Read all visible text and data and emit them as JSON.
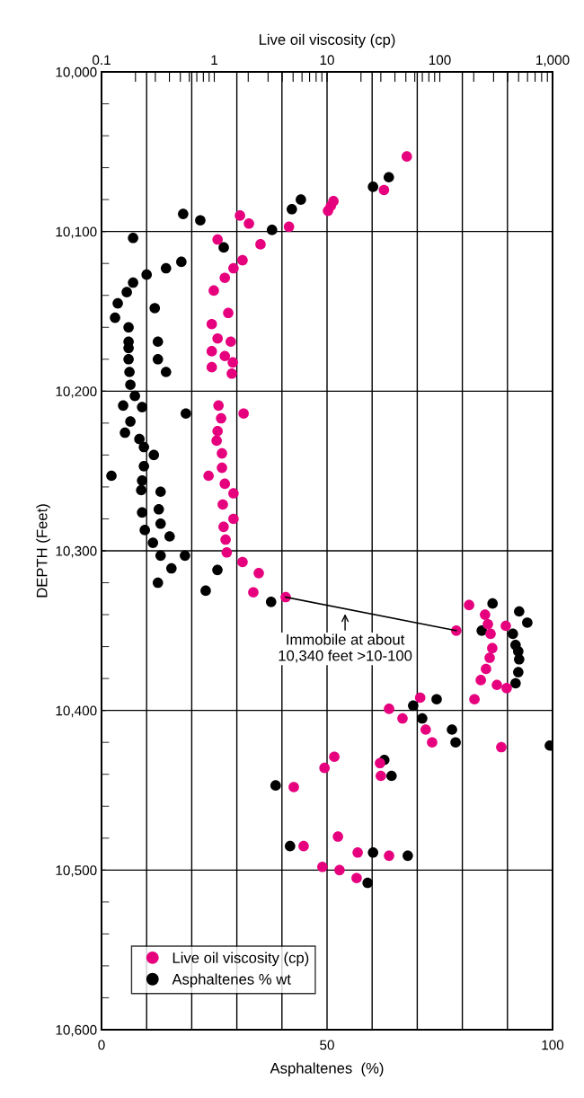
{
  "chart_data": {
    "type": "scatter",
    "xlabel": "Asphaltenes  (%)",
    "x2label": "Live oil viscosity (cp)",
    "ylabel": "DEPTH (Feet)",
    "xlim": [
      0,
      100
    ],
    "xticks": [
      0,
      {
        "value": 10,
        "label": null
      },
      {
        "value": 20,
        "label": null
      },
      {
        "value": 30,
        "label": null
      },
      {
        "value": 40,
        "label": null
      },
      50,
      {
        "value": 60,
        "label": null
      },
      {
        "value": 70,
        "label": null
      },
      {
        "value": 80,
        "label": null
      },
      {
        "value": 90,
        "label": null
      },
      100
    ],
    "x2lim": [
      0.1,
      1000
    ],
    "x2ticks": [
      0.1,
      {
        "value": 0.2,
        "label": null
      },
      {
        "value": 0.3,
        "label": null
      },
      {
        "value": 0.4,
        "label": null
      },
      {
        "value": 0.5,
        "label": null
      },
      {
        "value": 0.6,
        "label": null
      },
      {
        "value": 0.7,
        "label": null
      },
      {
        "value": 0.8,
        "label": null
      },
      {
        "value": 0.9,
        "label": null
      },
      1,
      {
        "value": 2,
        "label": null
      },
      {
        "value": 3,
        "label": null
      },
      {
        "value": 4,
        "label": null
      },
      {
        "value": 5,
        "label": null
      },
      {
        "value": 6,
        "label": null
      },
      {
        "value": 7,
        "label": null
      },
      {
        "value": 8,
        "label": null
      },
      {
        "value": 9,
        "label": null
      },
      10,
      {
        "value": 20,
        "label": null
      },
      {
        "value": 30,
        "label": null
      },
      {
        "value": 40,
        "label": null
      },
      {
        "value": 50,
        "label": null
      },
      {
        "value": 60,
        "label": null
      },
      {
        "value": 70,
        "label": null
      },
      {
        "value": 80,
        "label": null
      },
      {
        "value": 90,
        "label": null
      },
      100,
      {
        "value": 200,
        "label": null
      },
      {
        "value": 300,
        "label": null
      },
      {
        "value": 400,
        "label": null
      },
      {
        "value": 500,
        "label": null
      },
      {
        "value": 600,
        "label": null
      },
      {
        "value": 700,
        "label": null
      },
      {
        "value": 800,
        "label": null
      },
      {
        "value": 900,
        "label": null
      },
      {
        "value": 1000,
        "label": "1,000"
      }
    ],
    "log": "x2",
    "ylim": [
      10600,
      10000
    ],
    "yticks": [
      {
        "value": 10000,
        "label": "10,000"
      },
      {
        "value": 10020,
        "label": null
      },
      {
        "value": 10040,
        "label": null
      },
      {
        "value": 10060,
        "label": null
      },
      {
        "value": 10080,
        "label": null
      },
      {
        "value": 10100,
        "label": "10,100"
      },
      {
        "value": 10120,
        "label": null
      },
      {
        "value": 10140,
        "label": null
      },
      {
        "value": 10160,
        "label": null
      },
      {
        "value": 10180,
        "label": null
      },
      {
        "value": 10200,
        "label": "10,200"
      },
      {
        "value": 10220,
        "label": null
      },
      {
        "value": 10240,
        "label": null
      },
      {
        "value": 10260,
        "label": null
      },
      {
        "value": 10280,
        "label": null
      },
      {
        "value": 10300,
        "label": "10,300"
      },
      {
        "value": 10320,
        "label": null
      },
      {
        "value": 10340,
        "label": null
      },
      {
        "value": 10360,
        "label": null
      },
      {
        "value": 10380,
        "label": null
      },
      {
        "value": 10400,
        "label": "10,400"
      },
      {
        "value": 10420,
        "label": null
      },
      {
        "value": 10440,
        "label": null
      },
      {
        "value": 10460,
        "label": null
      },
      {
        "value": 10480,
        "label": null
      },
      {
        "value": 10500,
        "label": "10,500"
      },
      {
        "value": 10520,
        "label": null
      },
      {
        "value": 10540,
        "label": null
      },
      {
        "value": 10560,
        "label": null
      },
      {
        "value": 10580,
        "label": null
      },
      {
        "value": 10600,
        "label": "10,600"
      }
    ],
    "grid": true,
    "legend": "bottom left",
    "marker": "circle",
    "annotations": [
      {
        "text": "Immobile at about\n10,340 feet >10-100",
        "x": 54,
        "y": 10338
      }
    ],
    "series": [
      {
        "name": "Live oil viscosity (cp)",
        "color": "#e6007e",
        "axis": "x2",
        "x": [
          51,
          32,
          11.4,
          10.8,
          10.2,
          4.6,
          1.69,
          2.03,
          1.07,
          2.57,
          1.78,
          1.48,
          1.24,
          0.99,
          1.33,
          0.95,
          1.07,
          1.4,
          0.95,
          1.24,
          1.46,
          0.95,
          1.43,
          1.09,
          1.15,
          1.82,
          1.07,
          1.05,
          1.17,
          1.17,
          0.89,
          1.24,
          1.48,
          1.19,
          1.48,
          1.21,
          1.26,
          1.29,
          1.78,
          2.48,
          2.22,
          4.3,
          140,
          182,
          385,
          252,
          267,
          282,
          292,
          277,
          257,
          231,
          203,
          321,
          392,
          35.5,
          67,
          46.7,
          75,
          85.5,
          351,
          11.6,
          9.5,
          29.5,
          30,
          5.07,
          12.5,
          6.2,
          18.7,
          35.5,
          9.1,
          12.9,
          18.3
        ],
        "values": [
          10053,
          10074,
          10081,
          10084,
          10087,
          10097,
          10090,
          10095,
          10105,
          10108,
          10118,
          10123,
          10129,
          10137,
          10151,
          10158,
          10167,
          10169,
          10175,
          10178,
          10182,
          10185,
          10189,
          10209,
          10217,
          10214,
          10225,
          10231,
          10239,
          10248,
          10253,
          10258,
          10264,
          10271,
          10280,
          10285,
          10293,
          10301,
          10307,
          10314,
          10326,
          10329,
          10350,
          10334,
          10347,
          10340,
          10346,
          10352,
          10361,
          10367,
          10374,
          10381,
          10393,
          10384,
          10386,
          10399,
          10392,
          10405,
          10412,
          10420,
          10423,
          10429,
          10436,
          10433,
          10441,
          10448,
          10479,
          10485,
          10489,
          10491,
          10498,
          10500,
          10505
        ]
      },
      {
        "name": "Asphaltenes % wt",
        "color": "#000000",
        "x": [
          63.7,
          60.2,
          44.2,
          42.2,
          18.1,
          21.9,
          37.8,
          7.0,
          27.1,
          17.7,
          14.3,
          10.0,
          7.0,
          5.6,
          3.6,
          3.0,
          11.8,
          6.0,
          12.5,
          6.0,
          12.5,
          14.3,
          6.0,
          6.0,
          6.2,
          6.4,
          7.4,
          18.7,
          4.8,
          6.4,
          9.0,
          8.4,
          5.2,
          9.4,
          11.6,
          9.4,
          2.2,
          9.0,
          8.8,
          13.1,
          9.0,
          12.7,
          13.1,
          9.6,
          15.1,
          11.4,
          13.1,
          18.5,
          15.5,
          12.5,
          25.7,
          23.1,
          37.6,
          86.7,
          84.3,
          92.6,
          94.4,
          91.2,
          91.8,
          92.4,
          92.6,
          92.4,
          91.8,
          74.3,
          69.1,
          71.1,
          77.7,
          78.5,
          99.4,
          62.7,
          64.3,
          38.6,
          41.8,
          60.2,
          67.9,
          59.0
        ],
        "values": [
          10066,
          10072,
          10080,
          10086,
          10089,
          10093,
          10099,
          10104,
          10110,
          10119,
          10123,
          10127,
          10132,
          10138,
          10145,
          10154,
          10148,
          10160,
          10169,
          10169,
          10180,
          10188,
          10173,
          10180,
          10188,
          10196,
          10203,
          10214,
          10209,
          10219,
          10210,
          10230,
          10226,
          10235,
          10240,
          10247,
          10253,
          10256,
          10262,
          10263,
          10276,
          10274,
          10283,
          10287,
          10291,
          10295,
          10303,
          10303,
          10311,
          10320,
          10312,
          10325,
          10332,
          10333,
          10350,
          10338,
          10345,
          10352,
          10359,
          10363,
          10368,
          10376,
          10383,
          10393,
          10397,
          10405,
          10412,
          10420,
          10422,
          10431,
          10441,
          10447,
          10485,
          10489,
          10491,
          10508
        ]
      },
      {
        "color": "#000000",
        "type": "line",
        "marker": "none",
        "axis": "x2",
        "x": [
          4.3,
          140
        ],
        "values": [
          10329,
          10350
        ]
      }
    ]
  }
}
